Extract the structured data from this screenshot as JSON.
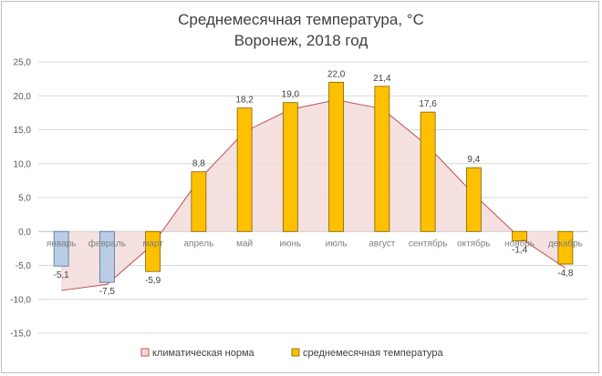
{
  "chart_data": {
    "type": "bar",
    "title": "Среднемесячная температура, °С",
    "subtitle": "Воронеж, 2018 год",
    "categories": [
      "январь",
      "февраль",
      "март",
      "апрель",
      "май",
      "июнь",
      "июль",
      "август",
      "сентябрь",
      "октябрь",
      "ноябрь",
      "декабрь"
    ],
    "series": [
      {
        "name": "климатическая норма",
        "type": "area",
        "values": [
          -8.7,
          -7.8,
          -1.9,
          7.6,
          14.7,
          18.0,
          19.4,
          18.1,
          12.6,
          5.5,
          -0.9,
          -5.4
        ],
        "fill": "#f2dcdb",
        "stroke": "#c0504d"
      },
      {
        "name": "среднемесячная температура",
        "type": "bar",
        "values": [
          -5.1,
          -7.5,
          -5.9,
          8.8,
          18.2,
          19.0,
          22.0,
          21.4,
          17.6,
          9.4,
          -1.4,
          -4.8
        ],
        "data_labels": [
          "-5,1",
          "-7,5",
          "-5,9",
          "8,8",
          "18,2",
          "19,0",
          "22,0",
          "21,4",
          "17,6",
          "9,4",
          "-1,4",
          "-4,8"
        ],
        "colors": [
          "#b9cde5",
          "#b9cde5",
          "#ffc000",
          "#ffc000",
          "#ffc000",
          "#ffc000",
          "#ffc000",
          "#ffc000",
          "#ffc000",
          "#ffc000",
          "#ffc000",
          "#ffc000"
        ]
      }
    ],
    "ylim": [
      -15,
      25
    ],
    "yticks": [
      -15,
      -10,
      -5,
      0,
      5,
      10,
      15,
      20,
      25
    ],
    "ytick_labels": [
      "-15,0",
      "-10,0",
      "-5,0",
      "0,0",
      "5,0",
      "10,0",
      "15,0",
      "20,0",
      "25,0"
    ],
    "grid": true,
    "legend_position": "bottom",
    "xlabel": "",
    "ylabel": ""
  }
}
